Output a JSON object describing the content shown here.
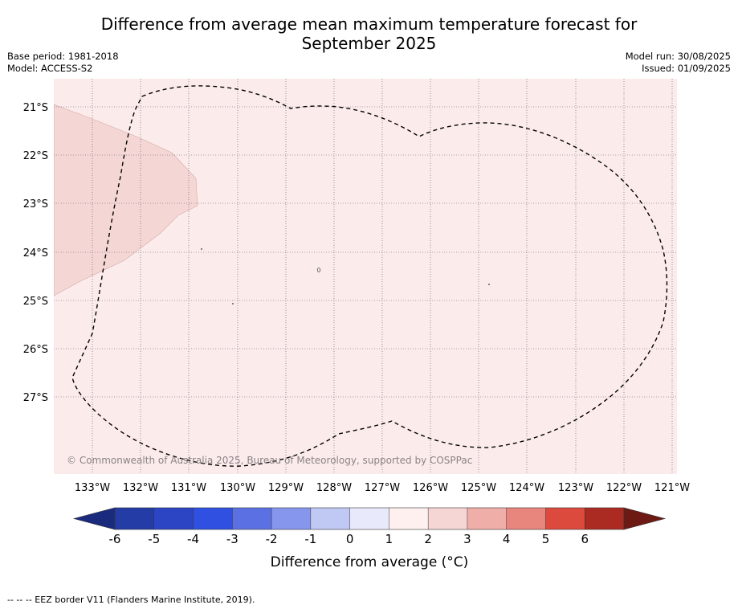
{
  "header": {
    "title_line1": "Difference from average mean maximum temperature forecast for",
    "title_line2": "September 2025",
    "base_period": "Base period: 1981-2018",
    "model": "Model: ACCESS-S2",
    "model_run": "Model run: 30/08/2025",
    "issued": "Issued: 01/09/2025"
  },
  "map": {
    "lat_labels": [
      "21°S",
      "22°S",
      "23°S",
      "24°S",
      "25°S",
      "26°S",
      "27°S"
    ],
    "lon_labels": [
      "133°W",
      "132°W",
      "131°W",
      "130°W",
      "129°W",
      "128°W",
      "127°W",
      "126°W",
      "125°W",
      "124°W",
      "123°W",
      "122°W",
      "121°W"
    ],
    "copyright": "© Commonwealth of Australia 2025, Bureau of Meteorology, supported by COSPPac",
    "background_category": "0 to 1",
    "anomaly_region_category": "1 to 2",
    "colors": {
      "cat_0_1": "#fbeceb",
      "cat_1_2": "#f4d7d5"
    }
  },
  "legend": {
    "title": "Difference from average (°C)",
    "tick_labels": [
      "-6",
      "-5",
      "-4",
      "-3",
      "-2",
      "-1",
      "0",
      "1",
      "2",
      "3",
      "4",
      "5",
      "6"
    ],
    "colors": [
      "#243ca6",
      "#2b45c4",
      "#2f50e0",
      "#5b71e3",
      "#8696ec",
      "#c0c8f4",
      "#e8eafb",
      "#fdf0ee",
      "#f6d6d4",
      "#efaea8",
      "#e8857c",
      "#dc4a3e",
      "#ab2a22"
    ],
    "extend_low_color": "#1a2b7d",
    "extend_high_color": "#6e1a14"
  },
  "footnote": "--  --  -- EEZ border V11 (Flanders Marine Institute, 2019)."
}
